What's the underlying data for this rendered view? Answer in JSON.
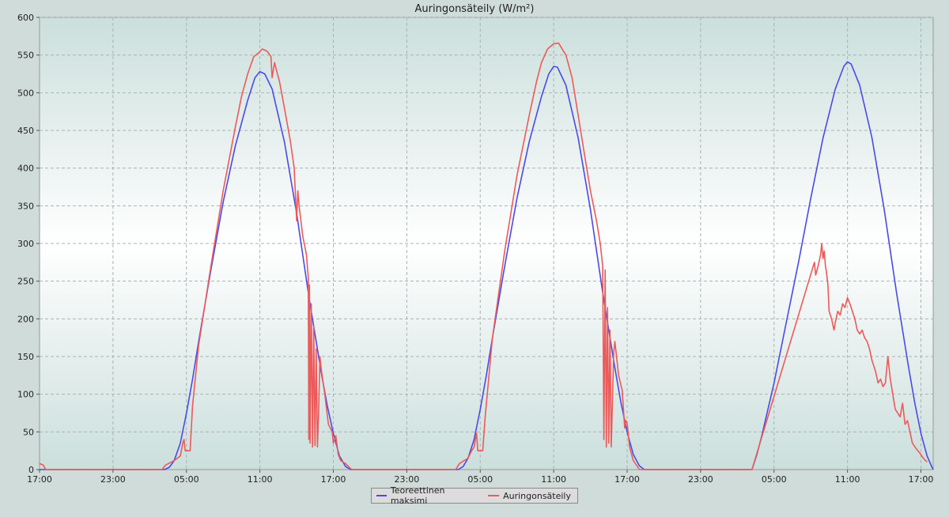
{
  "chart_data": {
    "type": "line",
    "title": "Auringonsäteily (W/m²)",
    "xlabel": "",
    "ylabel": "",
    "ylim": [
      0,
      600
    ],
    "yticks": [
      0,
      50,
      100,
      150,
      200,
      250,
      300,
      350,
      400,
      450,
      500,
      550,
      600
    ],
    "xlim_hours": [
      0,
      73
    ],
    "xticks": [
      {
        "h": 0,
        "label": "17:00"
      },
      {
        "h": 6,
        "label": "23:00"
      },
      {
        "h": 12,
        "label": "05:00"
      },
      {
        "h": 18,
        "label": "11:00"
      },
      {
        "h": 24,
        "label": "17:00"
      },
      {
        "h": 30,
        "label": "23:00"
      },
      {
        "h": 36,
        "label": "05:00"
      },
      {
        "h": 42,
        "label": "11:00"
      },
      {
        "h": 48,
        "label": "17:00"
      },
      {
        "h": 54,
        "label": "23:00"
      },
      {
        "h": 60,
        "label": "05:00"
      },
      {
        "h": 66,
        "label": "11:00"
      },
      {
        "h": 72,
        "label": "17:00"
      }
    ],
    "grid": true,
    "legend_position": "bottom-center",
    "series": [
      {
        "name": "Teoreettinen maksimi",
        "color": "#4a4ae6",
        "points": [
          [
            0,
            0
          ],
          [
            10.2,
            0
          ],
          [
            10.6,
            3
          ],
          [
            11,
            12
          ],
          [
            11.5,
            35
          ],
          [
            12,
            75
          ],
          [
            12.5,
            120
          ],
          [
            13,
            170
          ],
          [
            14,
            265
          ],
          [
            15,
            355
          ],
          [
            16,
            430
          ],
          [
            17,
            490
          ],
          [
            17.6,
            520
          ],
          [
            18,
            528
          ],
          [
            18.4,
            525
          ],
          [
            19,
            505
          ],
          [
            20,
            435
          ],
          [
            21,
            340
          ],
          [
            22,
            230
          ],
          [
            23,
            130
          ],
          [
            23.5,
            85
          ],
          [
            24,
            48
          ],
          [
            24.5,
            18
          ],
          [
            25,
            4
          ],
          [
            25.4,
            0
          ],
          [
            34.2,
            0
          ],
          [
            34.6,
            4
          ],
          [
            35,
            15
          ],
          [
            35.5,
            40
          ],
          [
            36,
            80
          ],
          [
            36.5,
            125
          ],
          [
            37,
            175
          ],
          [
            38,
            270
          ],
          [
            39,
            360
          ],
          [
            40,
            435
          ],
          [
            41,
            495
          ],
          [
            41.6,
            525
          ],
          [
            42,
            535
          ],
          [
            42.3,
            534
          ],
          [
            43,
            510
          ],
          [
            44,
            440
          ],
          [
            45,
            345
          ],
          [
            46,
            235
          ],
          [
            47,
            135
          ],
          [
            47.5,
            88
          ],
          [
            48,
            50
          ],
          [
            48.5,
            20
          ],
          [
            49,
            5
          ],
          [
            49.4,
            0
          ],
          [
            58.2,
            0
          ],
          [
            58.6,
            20
          ],
          [
            59,
            45
          ],
          [
            60,
            115
          ],
          [
            61,
            195
          ],
          [
            62,
            275
          ],
          [
            63,
            360
          ],
          [
            64,
            440
          ],
          [
            65,
            505
          ],
          [
            65.7,
            535
          ],
          [
            66,
            541
          ],
          [
            66.3,
            538
          ],
          [
            67,
            510
          ],
          [
            68,
            440
          ],
          [
            69,
            345
          ],
          [
            70,
            235
          ],
          [
            71,
            135
          ],
          [
            71.5,
            88
          ],
          [
            72,
            48
          ],
          [
            72.5,
            18
          ],
          [
            72.9,
            3
          ],
          [
            73,
            0
          ]
        ]
      },
      {
        "name": "Auringonsäteily",
        "color": "#ec5a5a",
        "points": [
          [
            0,
            8
          ],
          [
            0.3,
            6
          ],
          [
            0.5,
            0
          ],
          [
            10,
            0
          ],
          [
            10.3,
            6
          ],
          [
            11,
            12
          ],
          [
            11.5,
            18
          ],
          [
            11.7,
            35
          ],
          [
            11.8,
            40
          ],
          [
            11.9,
            25
          ],
          [
            12.3,
            25
          ],
          [
            12.5,
            85
          ],
          [
            13,
            165
          ],
          [
            14,
            270
          ],
          [
            15,
            370
          ],
          [
            16,
            455
          ],
          [
            16.5,
            495
          ],
          [
            17,
            525
          ],
          [
            17.5,
            548
          ],
          [
            17.9,
            553
          ],
          [
            18.2,
            558
          ],
          [
            18.6,
            555
          ],
          [
            18.9,
            548
          ],
          [
            19,
            520
          ],
          [
            19.2,
            540
          ],
          [
            19.4,
            527
          ],
          [
            19.6,
            515
          ],
          [
            20,
            480
          ],
          [
            20.5,
            435
          ],
          [
            20.8,
            400
          ],
          [
            21,
            330
          ],
          [
            21.1,
            370
          ],
          [
            21.2,
            350
          ],
          [
            21.5,
            310
          ],
          [
            21.8,
            285
          ],
          [
            21.95,
            255
          ],
          [
            22,
            40
          ],
          [
            22.05,
            245
          ],
          [
            22.1,
            35
          ],
          [
            22.2,
            220
          ],
          [
            22.3,
            30
          ],
          [
            22.4,
            190
          ],
          [
            22.5,
            32
          ],
          [
            22.6,
            160
          ],
          [
            22.7,
            30
          ],
          [
            22.8,
            75
          ],
          [
            22.9,
            150
          ],
          [
            23,
            135
          ],
          [
            23.3,
            100
          ],
          [
            23.6,
            60
          ],
          [
            23.9,
            50
          ],
          [
            24,
            35
          ],
          [
            24.2,
            45
          ],
          [
            24.4,
            20
          ],
          [
            24.6,
            12
          ],
          [
            25,
            8
          ],
          [
            25.3,
            3
          ],
          [
            25.5,
            0
          ],
          [
            34,
            0
          ],
          [
            34.3,
            8
          ],
          [
            34.7,
            12
          ],
          [
            35,
            15
          ],
          [
            35.3,
            25
          ],
          [
            35.5,
            30
          ],
          [
            35.6,
            40
          ],
          [
            35.7,
            48
          ],
          [
            35.8,
            25
          ],
          [
            36.2,
            25
          ],
          [
            36.4,
            70
          ],
          [
            37,
            175
          ],
          [
            38,
            290
          ],
          [
            39,
            390
          ],
          [
            40,
            470
          ],
          [
            40.6,
            515
          ],
          [
            41,
            540
          ],
          [
            41.5,
            558
          ],
          [
            42,
            565
          ],
          [
            42.4,
            566
          ],
          [
            43,
            550
          ],
          [
            43.5,
            520
          ],
          [
            44,
            470
          ],
          [
            44.5,
            420
          ],
          [
            45,
            370
          ],
          [
            45.5,
            330
          ],
          [
            45.8,
            300
          ],
          [
            46,
            270
          ],
          [
            46.1,
            40
          ],
          [
            46.2,
            265
          ],
          [
            46.3,
            30
          ],
          [
            46.4,
            215
          ],
          [
            46.5,
            35
          ],
          [
            46.6,
            185
          ],
          [
            46.7,
            30
          ],
          [
            46.8,
            90
          ],
          [
            46.9,
            155
          ],
          [
            47,
            170
          ],
          [
            47.3,
            125
          ],
          [
            47.6,
            105
          ],
          [
            47.8,
            55
          ],
          [
            47.9,
            65
          ],
          [
            48,
            62
          ],
          [
            48.2,
            30
          ],
          [
            48.5,
            12
          ],
          [
            48.8,
            5
          ],
          [
            49,
            0
          ],
          [
            58.2,
            0
          ],
          [
            63.3,
            275
          ],
          [
            63.4,
            258
          ],
          [
            63.6,
            270
          ],
          [
            63.8,
            285
          ],
          [
            63.9,
            300
          ],
          [
            64,
            280
          ],
          [
            64.1,
            290
          ],
          [
            64.2,
            270
          ],
          [
            64.3,
            260
          ],
          [
            64.4,
            245
          ],
          [
            64.5,
            210
          ],
          [
            64.7,
            200
          ],
          [
            64.9,
            185
          ],
          [
            65,
            195
          ],
          [
            65.2,
            210
          ],
          [
            65.4,
            205
          ],
          [
            65.6,
            220
          ],
          [
            65.8,
            215
          ],
          [
            66,
            228
          ],
          [
            66.2,
            220
          ],
          [
            66.4,
            210
          ],
          [
            66.6,
            200
          ],
          [
            66.8,
            185
          ],
          [
            67,
            180
          ],
          [
            67.2,
            185
          ],
          [
            67.4,
            175
          ],
          [
            67.6,
            170
          ],
          [
            67.8,
            160
          ],
          [
            68,
            145
          ],
          [
            68.3,
            130
          ],
          [
            68.5,
            115
          ],
          [
            68.7,
            120
          ],
          [
            68.9,
            110
          ],
          [
            69.1,
            115
          ],
          [
            69.3,
            150
          ],
          [
            69.5,
            120
          ],
          [
            69.7,
            100
          ],
          [
            69.9,
            80
          ],
          [
            70.1,
            75
          ],
          [
            70.3,
            70
          ],
          [
            70.5,
            88
          ],
          [
            70.7,
            60
          ],
          [
            70.9,
            65
          ],
          [
            71.1,
            50
          ],
          [
            71.3,
            35
          ],
          [
            71.6,
            28
          ],
          [
            71.9,
            22
          ],
          [
            72.2,
            15
          ],
          [
            72.5,
            10
          ]
        ]
      }
    ]
  }
}
